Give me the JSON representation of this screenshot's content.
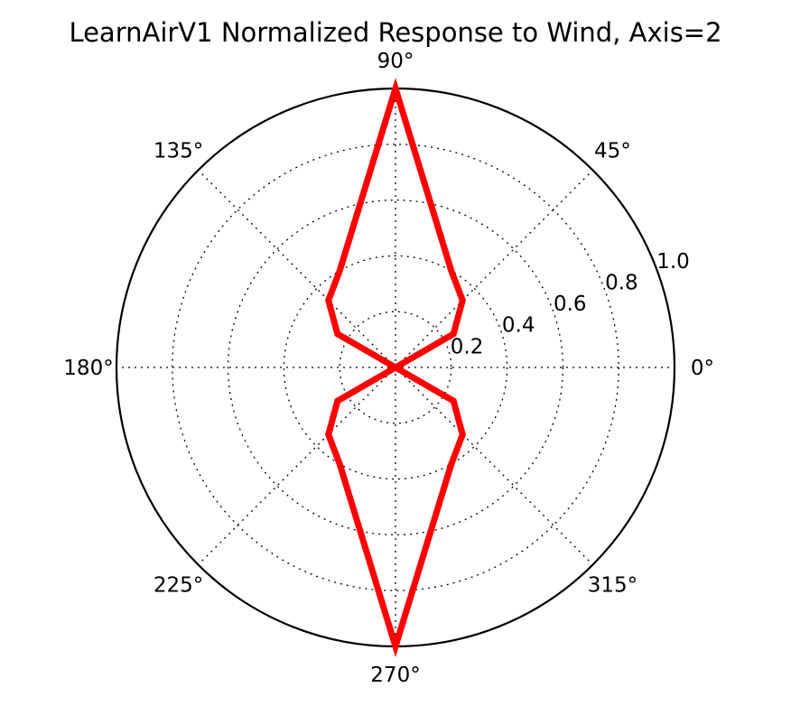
{
  "chart_data": {
    "type": "line",
    "subtype": "polar",
    "title": "LearnAirV1 Normalized Response to Wind, Axis=2",
    "angular_ticks": [
      {
        "angle": 0,
        "label": "0°"
      },
      {
        "angle": 45,
        "label": "45°"
      },
      {
        "angle": 90,
        "label": "90°"
      },
      {
        "angle": 135,
        "label": "135°"
      },
      {
        "angle": 180,
        "label": "180°"
      },
      {
        "angle": 225,
        "label": "225°"
      },
      {
        "angle": 270,
        "label": "270°"
      },
      {
        "angle": 315,
        "label": "315°"
      }
    ],
    "radial_ticks": [
      {
        "value": 0.2,
        "label": "0.2"
      },
      {
        "value": 0.4,
        "label": "0.4"
      },
      {
        "value": 0.6,
        "label": "0.6"
      },
      {
        "value": 0.8,
        "label": "0.8"
      },
      {
        "value": 1.0,
        "label": "1.0"
      }
    ],
    "rlim": [
      0,
      1.0
    ],
    "grid": true,
    "series": [
      {
        "color": "#ff0000",
        "theta_deg": [
          0,
          30,
          45,
          60,
          90,
          120,
          135,
          150,
          180,
          210,
          225,
          240,
          270,
          300,
          315,
          330,
          360
        ],
        "r": [
          0.0,
          0.24,
          0.34,
          0.4,
          1.0,
          0.4,
          0.34,
          0.24,
          0.0,
          0.24,
          0.34,
          0.4,
          1.0,
          0.4,
          0.34,
          0.24,
          0.0
        ]
      }
    ]
  }
}
